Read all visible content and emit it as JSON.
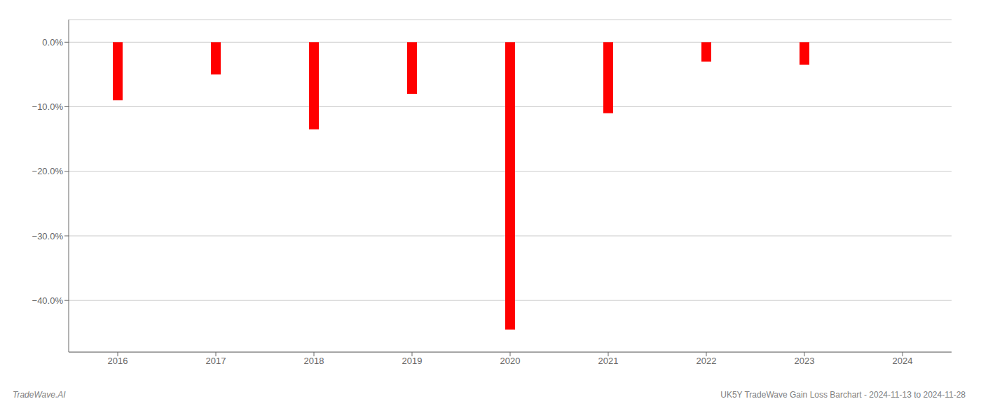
{
  "chart_data": {
    "type": "bar",
    "categories": [
      "2016",
      "2017",
      "2018",
      "2019",
      "2020",
      "2021",
      "2022",
      "2023",
      "2024"
    ],
    "values": [
      -9.0,
      -5.0,
      -13.5,
      -8.0,
      -44.5,
      -11.0,
      -3.0,
      -3.5,
      0.0
    ],
    "color": "#ff0000",
    "ylim": [
      -48,
      3.5
    ],
    "yticks": [
      {
        "value": 0.0,
        "label": "0.0%"
      },
      {
        "value": -10.0,
        "label": "−10.0%"
      },
      {
        "value": -20.0,
        "label": "−20.0%"
      },
      {
        "value": -30.0,
        "label": "−30.0%"
      },
      {
        "value": -40.0,
        "label": "−40.0%"
      }
    ],
    "grid": true,
    "annotations": [
      "TradeWave.AI",
      "UK5Y TradeWave Gain Loss Barchart - 2024-11-13 to 2024-11-28"
    ]
  }
}
